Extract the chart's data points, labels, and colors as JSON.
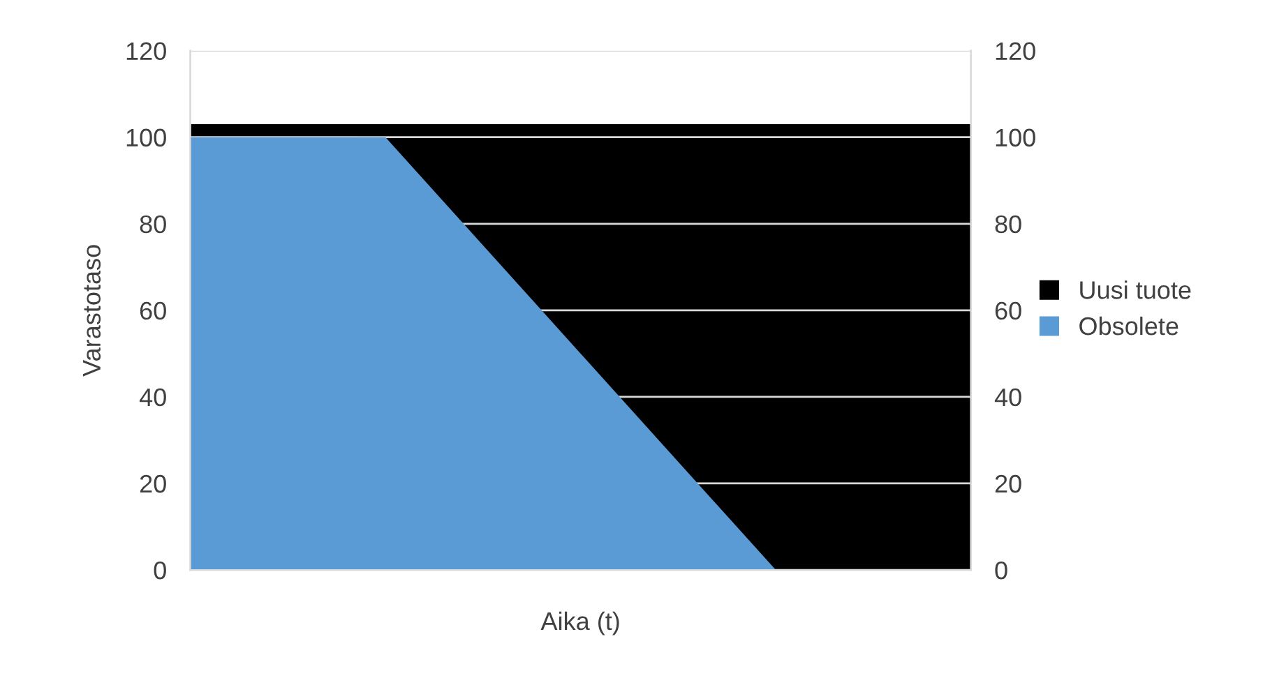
{
  "chart_data": {
    "type": "area",
    "xlabel": "Aika (t)",
    "ylabel": "Varastotaso",
    "categories": [
      null,
      null,
      null,
      null,
      null
    ],
    "series": [
      {
        "name": "Uusi tuote",
        "color": "#000000",
        "values": [
          103,
          103,
          103,
          103,
          103
        ],
        "axis": "y2"
      },
      {
        "name": "Obsolete",
        "color": "#5b9bd5",
        "values": [
          100,
          100,
          50,
          0,
          0
        ]
      }
    ],
    "ylim": [
      0,
      120
    ],
    "yticks": [
      0,
      20,
      40,
      60,
      80,
      100,
      120
    ],
    "y2lim": [
      0,
      120
    ],
    "y2ticks": [
      0,
      20,
      40,
      60,
      80,
      100,
      120
    ],
    "grid": "y",
    "legend": "right"
  }
}
